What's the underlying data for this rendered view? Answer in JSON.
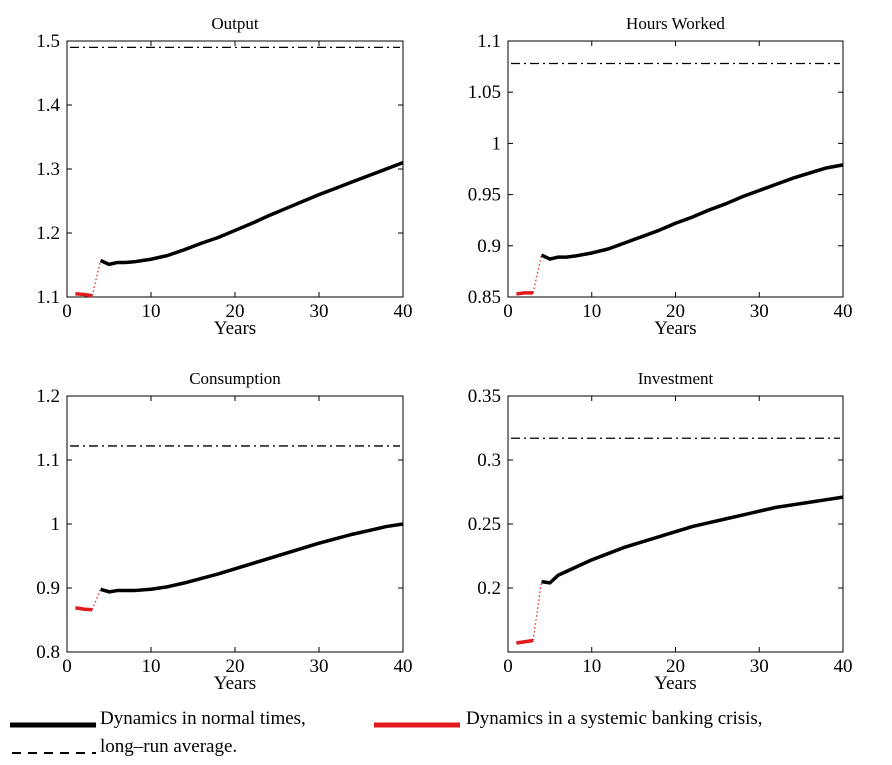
{
  "chart_data": [
    {
      "type": "line",
      "title": "Output",
      "xlabel": "Years",
      "ylabel": "",
      "xlim": [
        0,
        40
      ],
      "ylim": [
        1.1,
        1.5
      ],
      "xticks": [
        0,
        10,
        20,
        30,
        40
      ],
      "yticks": [
        1.1,
        1.2,
        1.3,
        1.4,
        1.5
      ],
      "ytick_labels": [
        "1.1",
        "1.2",
        "1.3",
        "1.4",
        "1.5"
      ],
      "crisis": {
        "x": [
          1,
          2,
          3
        ],
        "y": [
          1.105,
          1.104,
          1.102
        ]
      },
      "normal": {
        "x": [
          4,
          5,
          6,
          7,
          8,
          10,
          12,
          14,
          16,
          18,
          20,
          22,
          24,
          26,
          28,
          30,
          32,
          34,
          36,
          38,
          40
        ],
        "y": [
          1.157,
          1.151,
          1.154,
          1.154,
          1.155,
          1.159,
          1.165,
          1.174,
          1.184,
          1.193,
          1.204,
          1.215,
          1.227,
          1.238,
          1.249,
          1.26,
          1.27,
          1.28,
          1.29,
          1.3,
          1.31
        ]
      },
      "average": 1.49
    },
    {
      "type": "line",
      "title": "Hours Worked",
      "xlabel": "Years",
      "ylabel": "",
      "xlim": [
        0,
        40
      ],
      "ylim": [
        0.85,
        1.1
      ],
      "xticks": [
        0,
        10,
        20,
        30,
        40
      ],
      "yticks": [
        0.85,
        0.9,
        0.95,
        1.0,
        1.05,
        1.1
      ],
      "ytick_labels": [
        "0.85",
        "0.9",
        "0.95",
        "1",
        "1.05",
        "1.1"
      ],
      "crisis": {
        "x": [
          1,
          2,
          3
        ],
        "y": [
          0.853,
          0.854,
          0.854
        ]
      },
      "normal": {
        "x": [
          4,
          5,
          6,
          7,
          8,
          10,
          12,
          14,
          16,
          18,
          20,
          22,
          24,
          26,
          28,
          30,
          32,
          34,
          36,
          38,
          40
        ],
        "y": [
          0.891,
          0.887,
          0.889,
          0.889,
          0.89,
          0.893,
          0.897,
          0.903,
          0.909,
          0.915,
          0.922,
          0.928,
          0.935,
          0.941,
          0.948,
          0.954,
          0.96,
          0.966,
          0.971,
          0.976,
          0.979
        ]
      },
      "average": 1.078
    },
    {
      "type": "line",
      "title": "Consumption",
      "xlabel": "Years",
      "ylabel": "",
      "xlim": [
        0,
        40
      ],
      "ylim": [
        0.8,
        1.2
      ],
      "xticks": [
        0,
        10,
        20,
        30,
        40
      ],
      "yticks": [
        0.8,
        0.9,
        1.0,
        1.1,
        1.2
      ],
      "ytick_labels": [
        "0.8",
        "0.9",
        "1",
        "1.1",
        "1.2"
      ],
      "crisis": {
        "x": [
          1,
          2,
          3
        ],
        "y": [
          0.869,
          0.867,
          0.866
        ]
      },
      "normal": {
        "x": [
          4,
          5,
          6,
          7,
          8,
          10,
          12,
          14,
          16,
          18,
          20,
          22,
          24,
          26,
          28,
          30,
          32,
          34,
          36,
          38,
          40
        ],
        "y": [
          0.898,
          0.894,
          0.896,
          0.896,
          0.896,
          0.898,
          0.902,
          0.908,
          0.915,
          0.922,
          0.93,
          0.938,
          0.946,
          0.954,
          0.962,
          0.97,
          0.977,
          0.984,
          0.99,
          0.996,
          1.0
        ]
      },
      "average": 1.122
    },
    {
      "type": "line",
      "title": "Investment",
      "xlabel": "Years",
      "ylabel": "",
      "xlim": [
        0,
        40
      ],
      "ylim": [
        0.15,
        0.35
      ],
      "xticks": [
        0,
        10,
        20,
        30,
        40
      ],
      "yticks": [
        0.2,
        0.25,
        0.3,
        0.35
      ],
      "ytick_labels": [
        "0.2",
        "0.25",
        "0.3",
        "0.35"
      ],
      "crisis": {
        "x": [
          1,
          2,
          3
        ],
        "y": [
          0.157,
          0.158,
          0.159
        ]
      },
      "normal": {
        "x": [
          4,
          5,
          6,
          7,
          8,
          10,
          12,
          14,
          16,
          18,
          20,
          22,
          24,
          26,
          28,
          30,
          32,
          34,
          36,
          38,
          40
        ],
        "y": [
          0.205,
          0.204,
          0.21,
          0.213,
          0.216,
          0.222,
          0.227,
          0.232,
          0.236,
          0.24,
          0.244,
          0.248,
          0.251,
          0.254,
          0.257,
          0.26,
          0.263,
          0.265,
          0.267,
          0.269,
          0.271
        ]
      },
      "average": 0.317
    }
  ],
  "legend": {
    "normal_label": "Dynamics in normal times,",
    "crisis_label": "Dynamics in a systemic banking crisis,",
    "average_label": "long–run average."
  },
  "colors": {
    "normal": "#000000",
    "crisis": "#e31a1c",
    "average": "#000000"
  }
}
